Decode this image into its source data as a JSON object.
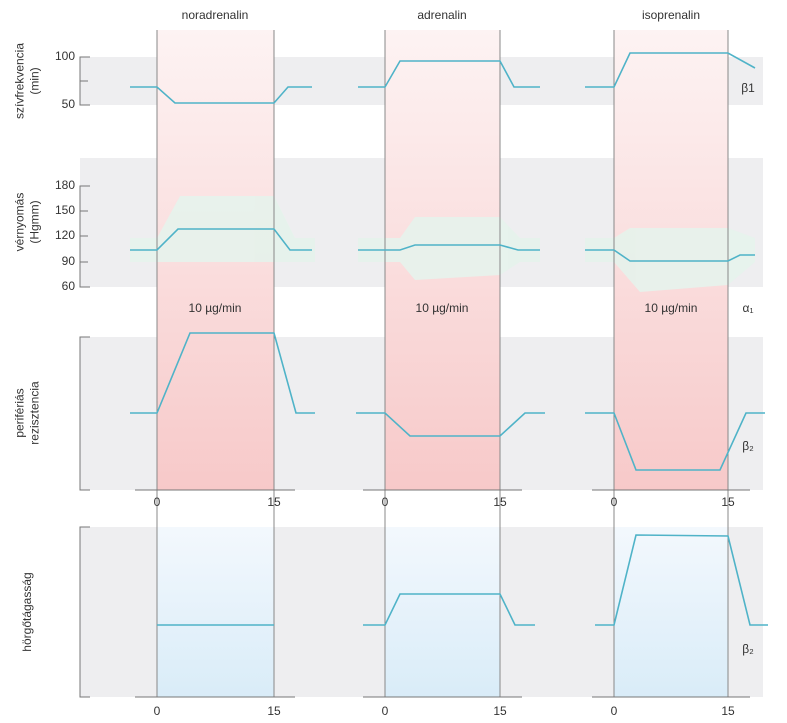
{
  "columns": [
    "noradrenalin",
    "adrenalin",
    "isoprenalin"
  ],
  "rows": [
    {
      "label": [
        "szívfrekvencia",
        "(min)"
      ],
      "ticks": [
        "100",
        "50"
      ],
      "receptor": "β1"
    },
    {
      "label": [
        "vérnyomás",
        "(Hgmm)"
      ],
      "ticks": [
        "180",
        "150",
        "120",
        "90",
        "60"
      ],
      "receptor": "α₁"
    },
    {
      "label": [
        "perifériás",
        "rezisztencia"
      ],
      "ticks": [],
      "receptor": "β₂"
    },
    {
      "label": [
        "hörgőtágasság"
      ],
      "ticks": [],
      "receptor": "β₂"
    }
  ],
  "doses": [
    "10 µg/min",
    "10 µg/min",
    "10 µg/min"
  ],
  "x_axes": [
    [
      "0",
      "15"
    ],
    [
      "0",
      "15"
    ],
    [
      "0",
      "15"
    ],
    [
      "0",
      "15"
    ],
    [
      "0",
      "15"
    ],
    [
      "0",
      "15"
    ]
  ]
}
